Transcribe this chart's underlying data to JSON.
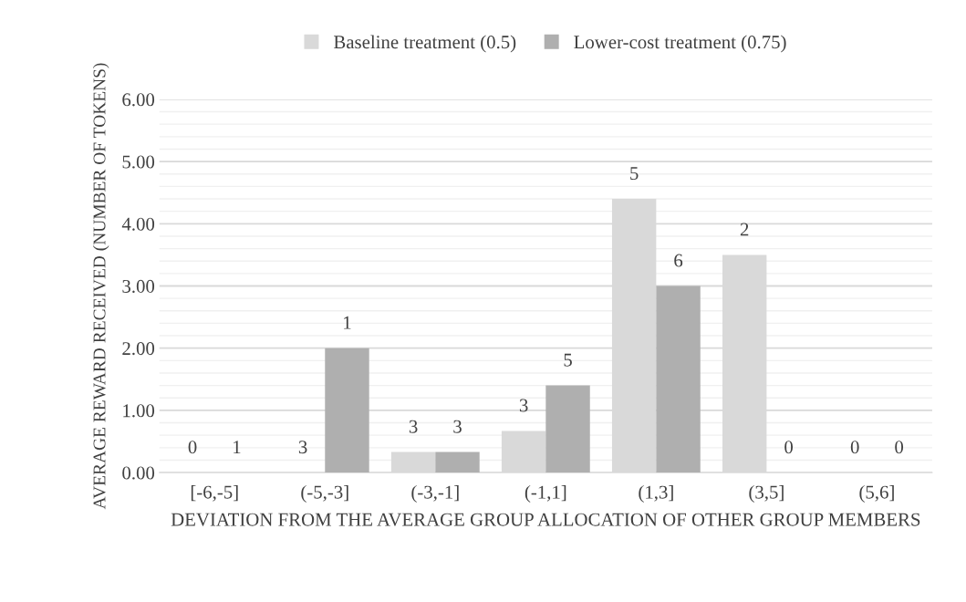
{
  "chart_data": {
    "type": "bar",
    "xlabel": "DEVIATION FROM THE AVERAGE GROUP ALLOCATION OF OTHER GROUP MEMBERS",
    "ylabel": "AVERAGE REWARD RECEIVED (NUMBER OF TOKENS)",
    "categories": [
      "[-6,-5]",
      "(-5,-3]",
      "(-3,-1]",
      "(-1,1]",
      "(1,3]",
      "(3,5]",
      "(5,6]"
    ],
    "series": [
      {
        "name": "Baseline treatment (0.5)",
        "color": "#d9d9d9",
        "values": [
          0,
          0,
          0.33,
          0.67,
          4.4,
          3.5,
          0
        ]
      },
      {
        "name": "Lower-cost treatment (0.75)",
        "color": "#afafaf",
        "values": [
          0,
          2,
          0.33,
          1.4,
          3,
          0,
          0
        ]
      }
    ],
    "annotations": [
      {
        "text": "0",
        "x": "[-6,-5]",
        "y": 0
      },
      {
        "text": "1",
        "x": "[-6,-5]",
        "y": 0
      },
      {
        "text": "3",
        "x": "(-5,-3]",
        "y": 0
      },
      {
        "text": "1",
        "x": "(-5,-3]",
        "y": 2
      },
      {
        "text": "3",
        "x": "(-3,-1]",
        "y": 0.33
      },
      {
        "text": "3",
        "x": "(-3,-1]",
        "y": 0.33
      },
      {
        "text": "3",
        "x": "(-1,1]",
        "y": 0.67
      },
      {
        "text": "5",
        "x": "(-1,1]",
        "y": 1.4
      },
      {
        "text": "5",
        "x": "(1,3]",
        "y": 4.4
      },
      {
        "text": "6",
        "x": "(1,3]",
        "y": 3
      },
      {
        "text": "2",
        "x": "(3,5]",
        "y": 3.5
      },
      {
        "text": "0",
        "x": "(3,5]",
        "y": 0
      },
      {
        "text": "0",
        "x": "(5,6]",
        "y": 0
      },
      {
        "text": "0",
        "x": "(5,6]",
        "y": 0
      }
    ],
    "ylim": [
      0,
      6
    ],
    "yticks": [
      {
        "value": 0,
        "label": "0.00"
      },
      {
        "value": 0.2,
        "label": null
      },
      {
        "value": 0.4,
        "label": null
      },
      {
        "value": 0.6,
        "label": null
      },
      {
        "value": 0.8,
        "label": null
      },
      {
        "value": 1,
        "label": "1.00"
      },
      {
        "value": 1.2,
        "label": null
      },
      {
        "value": 1.4,
        "label": null
      },
      {
        "value": 1.6,
        "label": null
      },
      {
        "value": 1.8,
        "label": null
      },
      {
        "value": 2,
        "label": "2.00"
      },
      {
        "value": 2.2,
        "label": null
      },
      {
        "value": 2.4,
        "label": null
      },
      {
        "value": 2.6,
        "label": null
      },
      {
        "value": 2.8,
        "label": null
      },
      {
        "value": 3,
        "label": "3.00"
      },
      {
        "value": 3.2,
        "label": null
      },
      {
        "value": 3.4,
        "label": null
      },
      {
        "value": 3.6,
        "label": null
      },
      {
        "value": 3.8,
        "label": null
      },
      {
        "value": 4,
        "label": "4.00"
      },
      {
        "value": 4.2,
        "label": null
      },
      {
        "value": 4.4,
        "label": null
      },
      {
        "value": 4.6,
        "label": null
      },
      {
        "value": 4.8,
        "label": null
      },
      {
        "value": 5,
        "label": "5.00"
      },
      {
        "value": 5.2,
        "label": null
      },
      {
        "value": 5.4,
        "label": null
      },
      {
        "value": 5.6,
        "label": null
      },
      {
        "value": 5.8,
        "label": null
      },
      {
        "value": 6,
        "label": "6.00"
      }
    ],
    "grid": "y",
    "legend": "top"
  }
}
